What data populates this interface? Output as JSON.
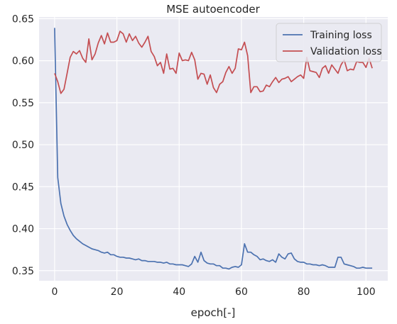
{
  "chart_data": {
    "type": "line",
    "title": "MSE autoencoder",
    "xlabel": "epoch[-]",
    "ylabel": "",
    "xlim": [
      -5,
      107
    ],
    "ylim": [
      0.338,
      0.652
    ],
    "xticks": [
      0,
      20,
      40,
      60,
      80,
      100
    ],
    "yticks": [
      0.35,
      0.4,
      0.45,
      0.5,
      0.55,
      0.6,
      0.65
    ],
    "ytick_labels": [
      "0.35",
      "0.40",
      "0.45",
      "0.50",
      "0.55",
      "0.60",
      "0.65"
    ],
    "grid": true,
    "legend_position": "top-right",
    "x": [
      0,
      1,
      2,
      3,
      4,
      5,
      6,
      7,
      8,
      9,
      10,
      11,
      12,
      13,
      14,
      15,
      16,
      17,
      18,
      19,
      20,
      21,
      22,
      23,
      24,
      25,
      26,
      27,
      28,
      29,
      30,
      31,
      32,
      33,
      34,
      35,
      36,
      37,
      38,
      39,
      40,
      41,
      42,
      43,
      44,
      45,
      46,
      47,
      48,
      49,
      50,
      51,
      52,
      53,
      54,
      55,
      56,
      57,
      58,
      59,
      60,
      61,
      62,
      63,
      64,
      65,
      66,
      67,
      68,
      69,
      70,
      71,
      72,
      73,
      74,
      75,
      76,
      77,
      78,
      79,
      80,
      81,
      82,
      83,
      84,
      85,
      86,
      87,
      88,
      89,
      90,
      91,
      92,
      93,
      94,
      95,
      96,
      97,
      98,
      99,
      100,
      101,
      102
    ],
    "series": [
      {
        "name": "Training loss",
        "color": "#4c72b0",
        "values": [
          0.639,
          0.461,
          0.43,
          0.415,
          0.405,
          0.398,
          0.392,
          0.388,
          0.385,
          0.382,
          0.38,
          0.378,
          0.376,
          0.375,
          0.374,
          0.372,
          0.371,
          0.372,
          0.369,
          0.369,
          0.367,
          0.366,
          0.366,
          0.365,
          0.365,
          0.364,
          0.363,
          0.364,
          0.362,
          0.362,
          0.361,
          0.361,
          0.361,
          0.36,
          0.36,
          0.359,
          0.36,
          0.358,
          0.358,
          0.357,
          0.357,
          0.357,
          0.356,
          0.355,
          0.358,
          0.367,
          0.36,
          0.372,
          0.362,
          0.359,
          0.358,
          0.358,
          0.356,
          0.356,
          0.353,
          0.353,
          0.352,
          0.354,
          0.355,
          0.354,
          0.357,
          0.382,
          0.372,
          0.372,
          0.369,
          0.367,
          0.363,
          0.364,
          0.362,
          0.361,
          0.363,
          0.36,
          0.37,
          0.366,
          0.364,
          0.37,
          0.371,
          0.364,
          0.361,
          0.36,
          0.36,
          0.358,
          0.358,
          0.357,
          0.357,
          0.356,
          0.357,
          0.356,
          0.354,
          0.354,
          0.354,
          0.366,
          0.366,
          0.358,
          0.357,
          0.356,
          0.355,
          0.353,
          0.353,
          0.354,
          0.353,
          0.353,
          0.353
        ]
      },
      {
        "name": "Validation loss",
        "color": "#c44e52",
        "values": [
          0.585,
          0.575,
          0.561,
          0.566,
          0.585,
          0.604,
          0.611,
          0.608,
          0.612,
          0.603,
          0.598,
          0.626,
          0.601,
          0.608,
          0.621,
          0.63,
          0.62,
          0.633,
          0.622,
          0.622,
          0.624,
          0.635,
          0.632,
          0.622,
          0.632,
          0.624,
          0.629,
          0.621,
          0.616,
          0.622,
          0.629,
          0.611,
          0.605,
          0.594,
          0.598,
          0.585,
          0.608,
          0.59,
          0.591,
          0.585,
          0.609,
          0.6,
          0.601,
          0.6,
          0.61,
          0.601,
          0.578,
          0.585,
          0.584,
          0.572,
          0.583,
          0.568,
          0.562,
          0.572,
          0.575,
          0.586,
          0.593,
          0.585,
          0.591,
          0.614,
          0.613,
          0.622,
          0.606,
          0.562,
          0.569,
          0.569,
          0.563,
          0.564,
          0.571,
          0.569,
          0.575,
          0.58,
          0.574,
          0.578,
          0.579,
          0.581,
          0.575,
          0.578,
          0.581,
          0.583,
          0.579,
          0.604,
          0.588,
          0.587,
          0.586,
          0.58,
          0.591,
          0.594,
          0.585,
          0.595,
          0.59,
          0.585,
          0.595,
          0.601,
          0.588,
          0.59,
          0.589,
          0.599,
          0.598,
          0.598,
          0.592,
          0.603,
          0.591
        ]
      }
    ]
  }
}
